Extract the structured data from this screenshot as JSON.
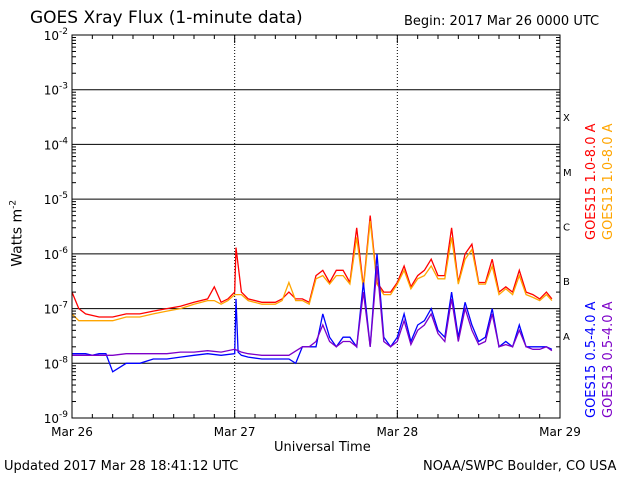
{
  "header": {
    "title": "GOES Xray Flux (1-minute data)",
    "begin_label": "Begin:",
    "begin_value": "2017 Mar 26 0000 UTC"
  },
  "footer": {
    "updated": "Updated 2017 Mar 28 18:41:12 UTC",
    "credit": "NOAA/SWPC Boulder, CO USA"
  },
  "chart_data": {
    "type": "line",
    "title": "GOES Xray Flux (1-minute data)",
    "xlabel": "Universal Time",
    "ylabel": "Watts m",
    "ylabel_sup": "-2",
    "yscale": "log",
    "ylim": [
      1e-09,
      0.01
    ],
    "xlim": [
      0,
      72
    ],
    "x_units": "hours since 2017 Mar 26 0000 UTC",
    "x_ticks": [
      {
        "x": 0,
        "label": "Mar 26"
      },
      {
        "x": 24,
        "label": "Mar 27"
      },
      {
        "x": 48,
        "label": "Mar 28"
      },
      {
        "x": 72,
        "label": "Mar 29"
      }
    ],
    "y_ticks": [
      {
        "exp": -9,
        "label": "10",
        "sup": "-9"
      },
      {
        "exp": -8,
        "label": "10",
        "sup": "-8"
      },
      {
        "exp": -7,
        "label": "10",
        "sup": "-7"
      },
      {
        "exp": -6,
        "label": "10",
        "sup": "-6"
      },
      {
        "exp": -5,
        "label": "10",
        "sup": "-5"
      },
      {
        "exp": -4,
        "label": "10",
        "sup": "-4"
      },
      {
        "exp": -3,
        "label": "10",
        "sup": "-3"
      },
      {
        "exp": -2,
        "label": "10",
        "sup": "-2"
      }
    ],
    "flare_classes": [
      {
        "label": "A",
        "exp": -7.5
      },
      {
        "label": "B",
        "exp": -6.5
      },
      {
        "label": "C",
        "exp": -5.5
      },
      {
        "label": "M",
        "exp": -4.5
      },
      {
        "label": "X",
        "exp": -3.5
      }
    ],
    "grid": "horizontal lines at each decade from 1e-8 to 1e-3; dotted vertical lines at day boundaries",
    "series": [
      {
        "name": "GOES15 1.0-8.0 A",
        "color": "#ff0000",
        "x": [
          0,
          1,
          2,
          4,
          6,
          8,
          10,
          12,
          14,
          16,
          18,
          20,
          21,
          22,
          23,
          24,
          24.2,
          25,
          26,
          28,
          30,
          31,
          32,
          33,
          34,
          35,
          36,
          37,
          38,
          39,
          40,
          41,
          42,
          43,
          44,
          45,
          46,
          47,
          48,
          49,
          50,
          51,
          52,
          53,
          54,
          55,
          56,
          57,
          58,
          59,
          60,
          61,
          62,
          63,
          64,
          65,
          66,
          67,
          68,
          69,
          70,
          70.8
        ],
        "y": [
          2e-07,
          1e-07,
          8e-08,
          7e-08,
          7e-08,
          8e-08,
          8e-08,
          9e-08,
          1e-07,
          1.1e-07,
          1.3e-07,
          1.5e-07,
          2.5e-07,
          1.3e-07,
          1.5e-07,
          2e-07,
          1.3e-06,
          2e-07,
          1.5e-07,
          1.3e-07,
          1.3e-07,
          1.5e-07,
          2e-07,
          1.5e-07,
          1.5e-07,
          1.3e-07,
          4e-07,
          5e-07,
          3e-07,
          5e-07,
          5e-07,
          3e-07,
          3e-06,
          2.5e-07,
          5e-06,
          3e-07,
          2e-07,
          2e-07,
          3e-07,
          6e-07,
          2.5e-07,
          4e-07,
          5e-07,
          8e-07,
          4e-07,
          4e-07,
          3e-06,
          3e-07,
          1e-06,
          1.5e-06,
          3e-07,
          3e-07,
          8e-07,
          2e-07,
          2.5e-07,
          2e-07,
          5e-07,
          2e-07,
          1.8e-07,
          1.5e-07,
          2e-07,
          1.5e-07
        ]
      },
      {
        "name": "GOES13 1.0-8.0 A",
        "color": "#ffa500",
        "x": [
          0,
          1,
          2,
          4,
          6,
          8,
          10,
          12,
          14,
          16,
          18,
          20,
          21,
          22,
          23,
          24,
          25,
          26,
          28,
          30,
          31,
          32,
          33,
          34,
          35,
          36,
          37,
          38,
          39,
          40,
          41,
          42,
          43,
          44,
          45,
          46,
          47,
          48,
          49,
          50,
          51,
          52,
          53,
          54,
          55,
          56,
          57,
          58,
          59,
          60,
          61,
          62,
          63,
          64,
          65,
          66,
          67,
          68,
          69,
          70,
          70.8
        ],
        "y": [
          8e-08,
          6e-08,
          6e-08,
          6e-08,
          6e-08,
          7e-08,
          7e-08,
          8e-08,
          9e-08,
          1e-07,
          1.2e-07,
          1.4e-07,
          1.4e-07,
          1.2e-07,
          1.4e-07,
          1.8e-07,
          1.8e-07,
          1.4e-07,
          1.2e-07,
          1.2e-07,
          1.4e-07,
          3e-07,
          1.4e-07,
          1.4e-07,
          1.2e-07,
          3.5e-07,
          4e-07,
          2.8e-07,
          4e-07,
          4e-07,
          2.8e-07,
          2e-06,
          2.3e-07,
          4e-06,
          2.8e-07,
          1.8e-07,
          1.8e-07,
          2.8e-07,
          5e-07,
          2.3e-07,
          3.5e-07,
          4e-07,
          6e-07,
          3.5e-07,
          3.5e-07,
          2e-06,
          2.8e-07,
          8e-07,
          1.2e-06,
          2.8e-07,
          2.8e-07,
          6e-07,
          1.8e-07,
          2.3e-07,
          1.8e-07,
          4e-07,
          1.8e-07,
          1.6e-07,
          1.4e-07,
          1.8e-07,
          1.4e-07
        ]
      },
      {
        "name": "GOES15 0.5-4.0 A",
        "color": "#0000ff",
        "x": [
          0,
          2,
          3,
          4,
          5,
          6,
          8,
          10,
          12,
          14,
          16,
          18,
          20,
          22,
          24,
          24.2,
          24.5,
          25,
          26,
          28,
          30,
          32,
          33,
          34,
          35,
          36,
          37,
          38,
          39,
          40,
          41,
          42,
          43,
          44,
          45,
          46,
          47,
          48,
          49,
          50,
          51,
          52,
          53,
          54,
          55,
          56,
          57,
          58,
          59,
          60,
          61,
          62,
          63,
          64,
          65,
          66,
          67,
          68,
          69,
          70,
          70.8
        ],
        "y": [
          1.5e-08,
          1.5e-08,
          1.4e-08,
          1.5e-08,
          1.5e-08,
          7e-09,
          1e-08,
          1e-08,
          1.2e-08,
          1.2e-08,
          1.3e-08,
          1.4e-08,
          1.5e-08,
          1.4e-08,
          1.5e-08,
          1.5e-07,
          1.6e-08,
          1.4e-08,
          1.3e-08,
          1.2e-08,
          1.2e-08,
          1.2e-08,
          1e-08,
          2e-08,
          2e-08,
          2e-08,
          8e-08,
          3e-08,
          2e-08,
          3e-08,
          3e-08,
          2e-08,
          3e-07,
          2e-08,
          1e-06,
          3e-08,
          2e-08,
          3e-08,
          8e-08,
          2.5e-08,
          5e-08,
          6e-08,
          1e-07,
          4e-08,
          3e-08,
          2e-07,
          3e-08,
          1.3e-07,
          5e-08,
          2.5e-08,
          3e-08,
          1e-07,
          2e-08,
          2.5e-08,
          2e-08,
          5e-08,
          2e-08,
          2e-08,
          2e-08,
          2e-08,
          1.8e-08
        ]
      },
      {
        "name": "GOES13 0.5-4.0 A",
        "color": "#7d00c8",
        "x": [
          0,
          2,
          4,
          6,
          8,
          10,
          12,
          14,
          16,
          18,
          20,
          22,
          24,
          25,
          26,
          28,
          30,
          32,
          34,
          35,
          36,
          37,
          38,
          39,
          40,
          41,
          42,
          43,
          44,
          45,
          46,
          47,
          48,
          49,
          50,
          51,
          52,
          53,
          54,
          55,
          56,
          57,
          58,
          59,
          60,
          61,
          62,
          63,
          64,
          65,
          66,
          67,
          68,
          69,
          70,
          70.8
        ],
        "y": [
          1.4e-08,
          1.4e-08,
          1.4e-08,
          1.4e-08,
          1.5e-08,
          1.5e-08,
          1.5e-08,
          1.5e-08,
          1.6e-08,
          1.6e-08,
          1.7e-08,
          1.6e-08,
          1.8e-08,
          1.6e-08,
          1.5e-08,
          1.4e-08,
          1.4e-08,
          1.4e-08,
          2e-08,
          2e-08,
          2.5e-08,
          5e-08,
          2.5e-08,
          2e-08,
          2.5e-08,
          2.5e-08,
          2e-08,
          2e-07,
          2e-08,
          6e-07,
          2.5e-08,
          2e-08,
          2.5e-08,
          6e-08,
          2.2e-08,
          4e-08,
          5e-08,
          8e-08,
          3.5e-08,
          2.5e-08,
          1.5e-07,
          2.5e-08,
          1e-07,
          4e-08,
          2.2e-08,
          2.5e-08,
          8e-08,
          2e-08,
          2.2e-08,
          2e-08,
          4e-08,
          2e-08,
          1.8e-08,
          1.8e-08,
          2e-08,
          1.7e-08
        ]
      }
    ]
  }
}
